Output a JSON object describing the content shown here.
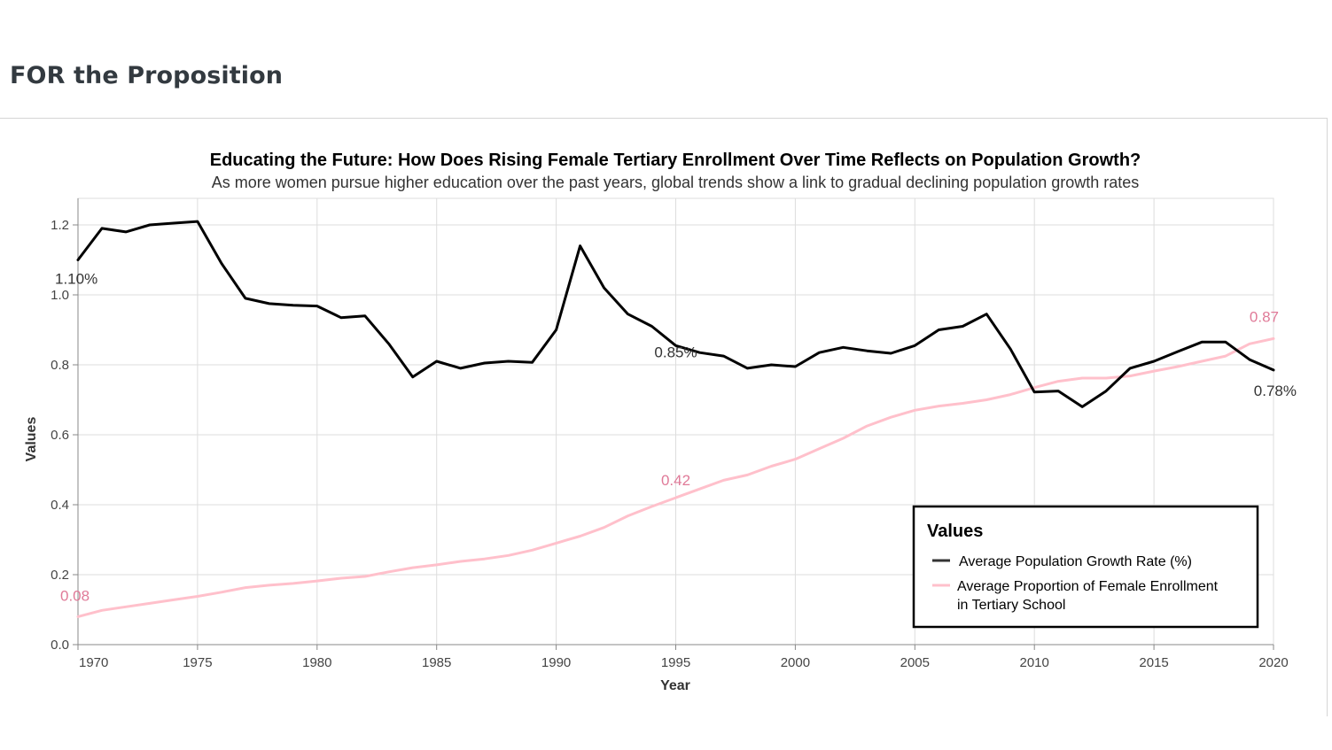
{
  "page": {
    "heading": "FOR the Proposition"
  },
  "chart_data": {
    "type": "line",
    "title": "Educating the Future: How Does Rising Female Tertiary Enrollment Over Time Reflects on Population Growth?",
    "subtitle": "As more women pursue higher education over the past years, global trends show a link to gradual declining population growth rates",
    "xlabel": "Year",
    "ylabel": "Values",
    "xlim": [
      1970,
      2020
    ],
    "ylim": [
      0,
      1.2
    ],
    "x_ticks": [
      "1970",
      "1975",
      "1980",
      "1985",
      "1990",
      "1995",
      "2000",
      "2005",
      "2010",
      "2015",
      "2020"
    ],
    "y_ticks": [
      "0.0",
      "0.2",
      "0.4",
      "0.6",
      "0.8",
      "1.0",
      "1.2"
    ],
    "grid": true,
    "legend_position": "bottom-right",
    "legend_title": "Values",
    "x": [
      1970,
      1971,
      1972,
      1973,
      1974,
      1975,
      1976,
      1977,
      1978,
      1979,
      1980,
      1981,
      1982,
      1983,
      1984,
      1985,
      1986,
      1987,
      1988,
      1989,
      1990,
      1991,
      1992,
      1993,
      1994,
      1995,
      1996,
      1997,
      1998,
      1999,
      2000,
      2001,
      2002,
      2003,
      2004,
      2005,
      2006,
      2007,
      2008,
      2009,
      2010,
      2011,
      2012,
      2013,
      2014,
      2015,
      2016,
      2017,
      2018,
      2019,
      2020
    ],
    "series": [
      {
        "name": "Average Population Growth Rate (%)",
        "color": "#000000",
        "values": [
          1.1,
          1.19,
          1.18,
          1.2,
          1.205,
          1.21,
          1.09,
          0.99,
          0.975,
          0.97,
          0.968,
          0.935,
          0.94,
          0.86,
          0.765,
          0.81,
          0.79,
          0.805,
          0.81,
          0.807,
          0.9,
          1.14,
          1.02,
          0.945,
          0.91,
          0.855,
          0.835,
          0.825,
          0.79,
          0.8,
          0.795,
          0.835,
          0.85,
          0.84,
          0.833,
          0.855,
          0.9,
          0.91,
          0.945,
          0.845,
          0.722,
          0.725,
          0.68,
          0.725,
          0.79,
          0.81,
          0.838,
          0.865,
          0.865,
          0.815,
          0.785
        ]
      },
      {
        "name": "Average Proportion of Female Enrollment in Tertiary School",
        "color": "#ffc0cb",
        "values": [
          0.08,
          0.098,
          0.108,
          0.118,
          0.128,
          0.138,
          0.15,
          0.163,
          0.17,
          0.175,
          0.182,
          0.19,
          0.195,
          0.208,
          0.22,
          0.228,
          0.238,
          0.245,
          0.255,
          0.27,
          0.29,
          0.31,
          0.335,
          0.368,
          0.395,
          0.42,
          0.445,
          0.47,
          0.485,
          0.51,
          0.53,
          0.56,
          0.59,
          0.625,
          0.65,
          0.67,
          0.682,
          0.69,
          0.7,
          0.715,
          0.735,
          0.753,
          0.762,
          0.762,
          0.768,
          0.782,
          0.795,
          0.81,
          0.825,
          0.86,
          0.875
        ]
      }
    ],
    "annotations": [
      {
        "series": 0,
        "x": 1970,
        "text": "1.10%"
      },
      {
        "series": 0,
        "x": 1995,
        "text": "0.85%"
      },
      {
        "series": 0,
        "x": 2020,
        "text": "0.78%"
      },
      {
        "series": 1,
        "x": 1970,
        "text": "0.08"
      },
      {
        "series": 1,
        "x": 1995,
        "text": "0.42"
      },
      {
        "series": 1,
        "x": 2020,
        "text": "0.87"
      }
    ],
    "annotation_colors": {
      "growth": "#333333",
      "enrollment": "#e07a98"
    }
  }
}
